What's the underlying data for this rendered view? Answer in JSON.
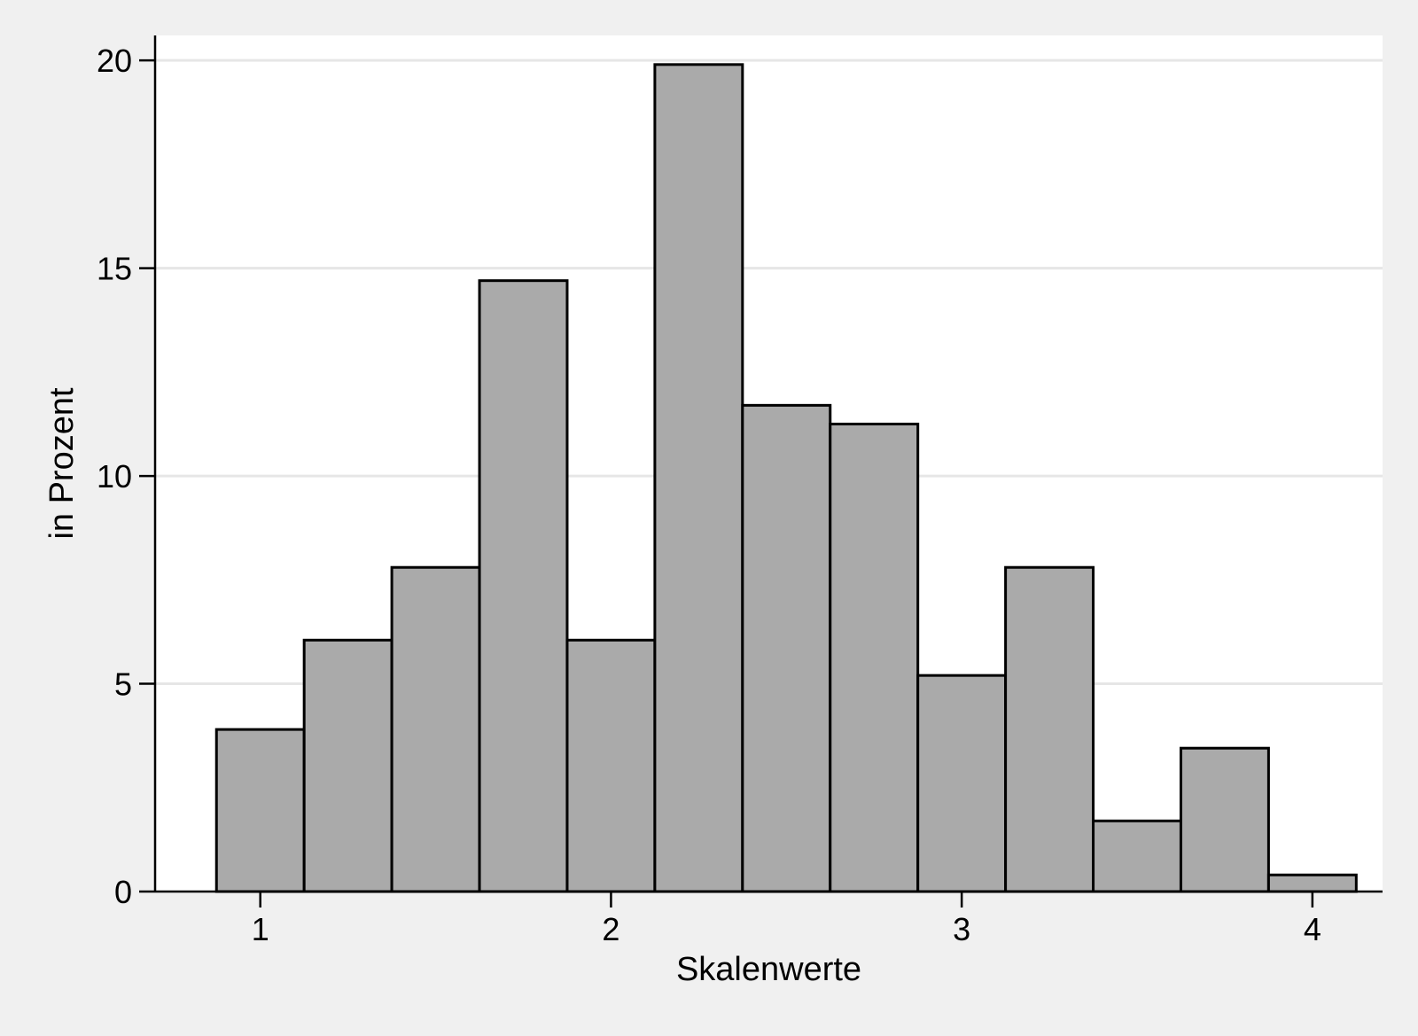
{
  "chart_data": {
    "type": "bar",
    "subtype": "histogram",
    "title": "",
    "xlabel": "Skalenwerte",
    "ylabel": "in Prozent",
    "xlim": [
      0.7,
      4.2
    ],
    "ylim": [
      0,
      20.6
    ],
    "x_ticks": [
      1,
      2,
      3,
      4
    ],
    "y_ticks": [
      0,
      5,
      10,
      15,
      20
    ],
    "grid": {
      "horizontal": true,
      "vertical": false
    },
    "legend": "none",
    "bin_width": 0.25,
    "bins": [
      {
        "start": 0.875,
        "end": 1.125,
        "value": 3.9
      },
      {
        "start": 1.125,
        "end": 1.375,
        "value": 6.05
      },
      {
        "start": 1.375,
        "end": 1.625,
        "value": 7.8
      },
      {
        "start": 1.625,
        "end": 1.875,
        "value": 14.7
      },
      {
        "start": 1.875,
        "end": 2.125,
        "value": 6.05
      },
      {
        "start": 2.125,
        "end": 2.375,
        "value": 19.9
      },
      {
        "start": 2.375,
        "end": 2.625,
        "value": 11.7
      },
      {
        "start": 2.625,
        "end": 2.875,
        "value": 11.25
      },
      {
        "start": 2.875,
        "end": 3.125,
        "value": 5.2
      },
      {
        "start": 3.125,
        "end": 3.375,
        "value": 7.8
      },
      {
        "start": 3.375,
        "end": 3.625,
        "value": 1.7
      },
      {
        "start": 3.625,
        "end": 3.875,
        "value": 3.45
      },
      {
        "start": 3.875,
        "end": 4.125,
        "value": 0.4
      }
    ],
    "colors": {
      "bar_fill": "#aaaaaa",
      "bar_stroke": "#000000",
      "grid": "#e6e6e6",
      "plot_background": "#ffffff",
      "figure_background": "#f0f0f0"
    }
  }
}
